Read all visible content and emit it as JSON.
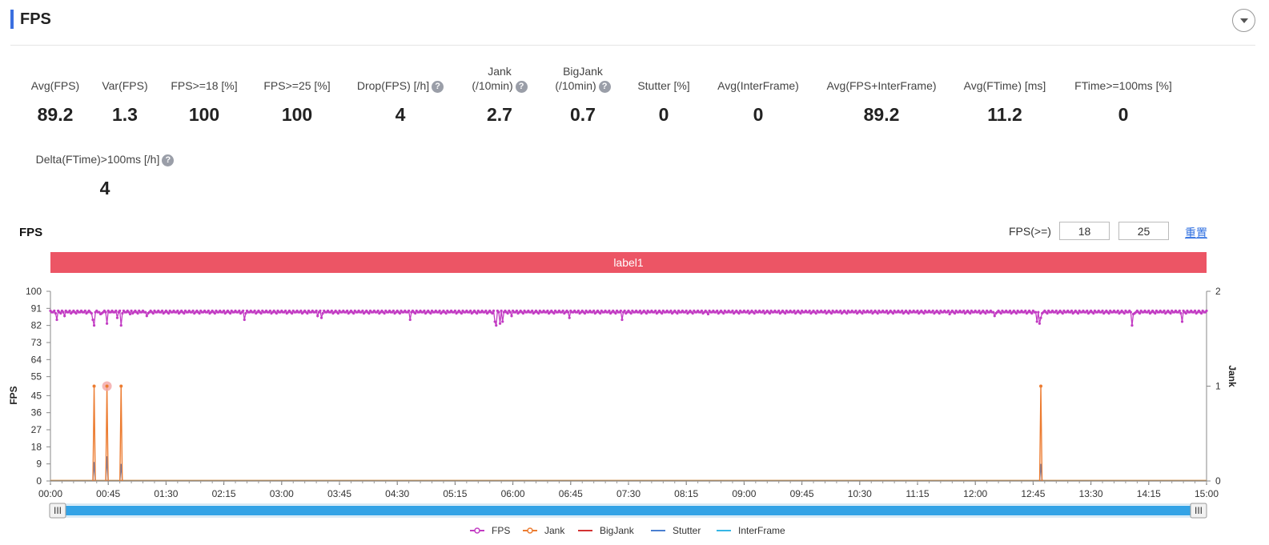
{
  "header": {
    "title": "FPS"
  },
  "metrics": [
    {
      "label": "Avg(FPS)",
      "value": "89.2",
      "help": false
    },
    {
      "label": "Var(FPS)",
      "value": "1.3",
      "help": false
    },
    {
      "label": "FPS>=18 [%]",
      "value": "100",
      "help": false
    },
    {
      "label": "FPS>=25 [%]",
      "value": "100",
      "help": false
    },
    {
      "label": "Drop(FPS) [/h]",
      "value": "4",
      "help": true
    },
    {
      "label_line1": "Jank",
      "label_line2": "(/10min)",
      "value": "2.7",
      "help": true
    },
    {
      "label_line1": "BigJank",
      "label_line2": "(/10min)",
      "value": "0.7",
      "help": true
    },
    {
      "label": "Stutter [%]",
      "value": "0",
      "help": false
    },
    {
      "label": "Avg(InterFrame)",
      "value": "0",
      "help": false
    },
    {
      "label": "Avg(FPS+InterFrame)",
      "value": "89.2",
      "help": false
    },
    {
      "label": "Avg(FTime) [ms]",
      "value": "11.2",
      "help": false
    },
    {
      "label": "FTime>=100ms [%]",
      "value": "0",
      "help": false
    },
    {
      "label": "Delta(FTime)>100ms [/h]",
      "value": "4",
      "help": true
    }
  ],
  "help_glyph": "?",
  "chart_section": {
    "title": "FPS",
    "threshold_label": "FPS(>=)",
    "threshold_1": "18",
    "threshold_2": "25",
    "reset_label": "重置",
    "band_label": "label1"
  },
  "chart_data": {
    "type": "line",
    "title": "FPS",
    "ylabel": "FPS",
    "y2label": "Jank",
    "ylim": [
      0,
      100
    ],
    "y2lim": [
      0,
      2
    ],
    "y_ticks": [
      "0",
      "9",
      "18",
      "27",
      "36",
      "45",
      "55",
      "64",
      "73",
      "82",
      "91",
      "100"
    ],
    "y2_ticks": [
      "0",
      "1",
      "2"
    ],
    "x_range_sec": [
      0,
      900
    ],
    "x_ticks": [
      "00:00",
      "00:45",
      "01:30",
      "02:15",
      "03:00",
      "03:45",
      "04:30",
      "05:15",
      "06:00",
      "06:45",
      "07:30",
      "08:15",
      "09:00",
      "09:45",
      "10:30",
      "11:15",
      "12:00",
      "12:45",
      "13:30",
      "14:15",
      "15:00"
    ],
    "series": [
      {
        "name": "FPS",
        "color": "#c23cc3",
        "baseline": 89,
        "dips": [
          [
            5,
            85
          ],
          [
            11,
            87
          ],
          [
            33,
            85
          ],
          [
            34,
            82
          ],
          [
            39,
            88
          ],
          [
            44,
            83
          ],
          [
            52,
            86
          ],
          [
            55,
            82
          ],
          [
            62,
            88
          ],
          [
            75,
            87
          ],
          [
            151,
            85
          ],
          [
            208,
            87
          ],
          [
            211,
            86
          ],
          [
            280,
            85
          ],
          [
            346,
            84
          ],
          [
            347,
            82
          ],
          [
            350,
            83
          ],
          [
            352,
            84
          ],
          [
            359,
            87
          ],
          [
            404,
            86
          ],
          [
            445,
            85
          ],
          [
            512,
            88
          ],
          [
            700,
            88
          ],
          [
            735,
            87
          ],
          [
            768,
            84
          ],
          [
            770,
            83
          ],
          [
            771,
            86
          ],
          [
            843,
            88
          ],
          [
            881,
            84
          ],
          [
            842,
            82
          ]
        ]
      },
      {
        "name": "Jank",
        "color": "#ec7c31",
        "axis": "right",
        "spikes": [
          [
            34,
            1
          ],
          [
            44,
            1
          ],
          [
            55,
            1
          ],
          [
            771,
            1
          ]
        ]
      },
      {
        "name": "BigJank",
        "color": "#d33232",
        "axis": "right",
        "values": []
      },
      {
        "name": "Stutter",
        "color": "#4a7fd0",
        "spikes": [
          [
            34,
            10
          ],
          [
            44,
            13
          ],
          [
            55,
            9
          ],
          [
            771,
            9
          ]
        ]
      },
      {
        "name": "InterFrame",
        "color": "#36b6e5",
        "values": []
      }
    ]
  },
  "slider": {
    "handle_glyph": "III"
  }
}
